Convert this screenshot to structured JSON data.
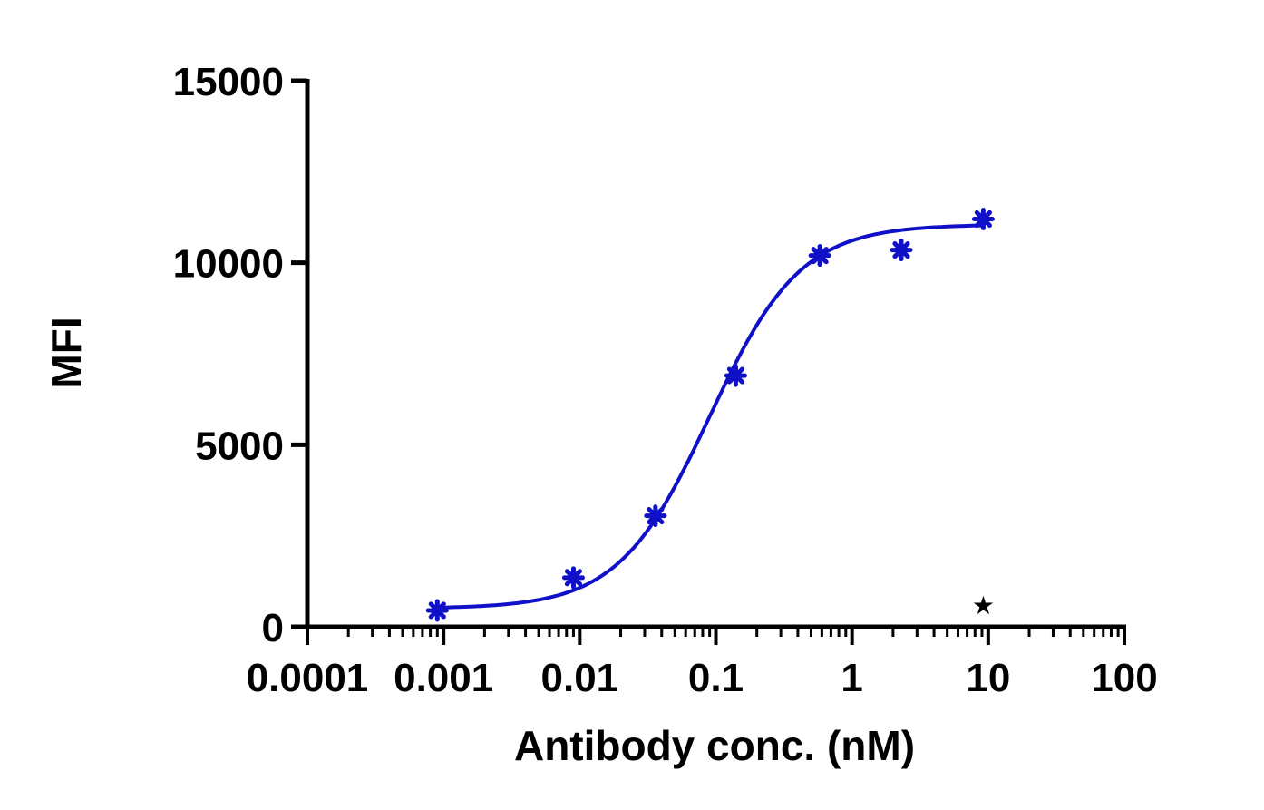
{
  "chart_data": {
    "type": "scatter",
    "xlabel": "Antibody conc. (nM)",
    "ylabel": "MFI",
    "x_scale": "log",
    "xlim": [
      0.0001,
      100
    ],
    "ylim": [
      0,
      15000
    ],
    "x_ticks": [
      {
        "value": 0.0001,
        "label": "0.0001"
      },
      {
        "value": 0.001,
        "label": "0.001"
      },
      {
        "value": 0.01,
        "label": "0.01"
      },
      {
        "value": 0.1,
        "label": "0.1"
      },
      {
        "value": 1,
        "label": "1"
      },
      {
        "value": 10,
        "label": "10"
      },
      {
        "value": 100,
        "label": "100"
      }
    ],
    "y_ticks": [
      {
        "value": 0,
        "label": "0"
      },
      {
        "value": 5000,
        "label": "5000"
      },
      {
        "value": 10000,
        "label": "10000"
      },
      {
        "value": 15000,
        "label": "15000"
      }
    ],
    "series": [
      {
        "color": "#1010c8",
        "marker": "asterisk",
        "points": [
          {
            "x": 0.0009,
            "y": 450
          },
          {
            "x": 0.009,
            "y": 1350
          },
          {
            "x": 0.036,
            "y": 3050
          },
          {
            "x": 0.14,
            "y": 6900
          },
          {
            "x": 0.58,
            "y": 10200
          },
          {
            "x": 2.3,
            "y": 10350
          },
          {
            "x": 9.2,
            "y": 11200
          }
        ],
        "fit": {
          "model": "4PL",
          "bottom": 500,
          "top": 11050,
          "ec50": 0.09,
          "hill": 1.3,
          "x_range": [
            0.0009,
            9.2
          ]
        }
      }
    ],
    "annotations": [
      {
        "symbol": "★",
        "x": 9.2,
        "y": 600,
        "color": "#000000"
      }
    ],
    "grid": false,
    "legend": "none"
  }
}
